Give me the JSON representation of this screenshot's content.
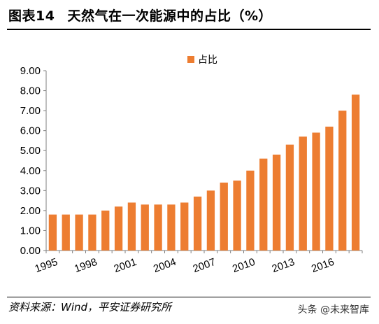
{
  "figure": {
    "label": "图表14",
    "title": "天然气在一次能源中的占比（%）",
    "source": "资料来源：Wind，平安证券研究所",
    "watermark": "头条 @未来智库"
  },
  "colors": {
    "bar": "#ED7D31",
    "axis": "#7f7f7f"
  },
  "chart_data": {
    "type": "bar",
    "title": "天然气在一次能源中的占比（%）",
    "xlabel": "",
    "ylabel": "",
    "categories": [
      "1995",
      "1996",
      "1997",
      "1998",
      "1999",
      "2000",
      "2001",
      "2002",
      "2003",
      "2004",
      "2005",
      "2006",
      "2007",
      "2008",
      "2009",
      "2010",
      "2011",
      "2012",
      "2013",
      "2014",
      "2015",
      "2016",
      "2017",
      "2018"
    ],
    "x_tick_labels": [
      "1995",
      "1998",
      "2001",
      "2004",
      "2007",
      "2010",
      "2013",
      "2016"
    ],
    "y_tick_labels": [
      "0.00",
      "1.00",
      "2.00",
      "3.00",
      "4.00",
      "5.00",
      "6.00",
      "7.00",
      "8.00",
      "9.00"
    ],
    "series": [
      {
        "name": "占比",
        "values": [
          1.8,
          1.8,
          1.8,
          1.8,
          2.0,
          2.2,
          2.4,
          2.3,
          2.3,
          2.3,
          2.4,
          2.7,
          3.0,
          3.4,
          3.5,
          4.0,
          4.6,
          4.8,
          5.3,
          5.7,
          5.9,
          6.2,
          7.0,
          7.8
        ]
      }
    ],
    "ylim": [
      0,
      9
    ],
    "yticks_step": 1,
    "grid": false,
    "legend": "top"
  }
}
